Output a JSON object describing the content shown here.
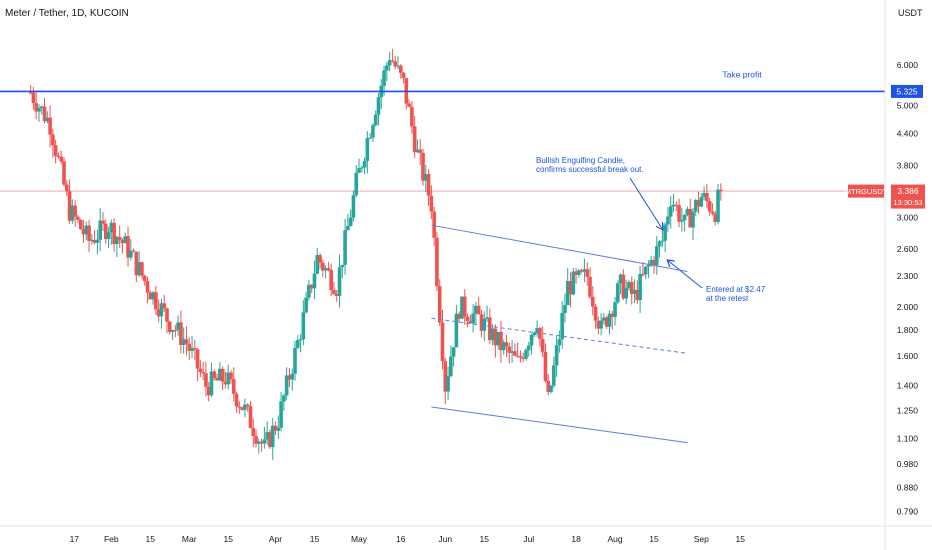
{
  "header": {
    "title": "Meter / Tether, 1D, KUCOIN",
    "unit": "USDT"
  },
  "colors": {
    "up": "#26a69a",
    "down": "#ef5350",
    "accent": "#1e53e5",
    "channel": "#5b7fe0",
    "label_text": "#1e53e5"
  },
  "chart_data": {
    "type": "candlestick",
    "symbol": "MTRGUSDT",
    "y_scale": "log",
    "ylim": [
      0.76,
      7.2
    ],
    "y_ticks": [
      "0.790",
      "0.880",
      "0.980",
      "1.100",
      "1.250",
      "1.400",
      "1.600",
      "1.800",
      "2.000",
      "2.300",
      "2.600",
      "3.000",
      "3.400",
      "3.800",
      "4.400",
      "5.000",
      "6.000"
    ],
    "x_ticks": [
      "17",
      "Feb",
      "15",
      "Mar",
      "15",
      "Apr",
      "15",
      "May",
      "16",
      "Jun",
      "15",
      "Jul",
      "18",
      "Aug",
      "15",
      "Sep",
      "15"
    ],
    "last_price": "3.386",
    "countdown": "13:30:53",
    "take_profit_level": "5.325",
    "annotations": {
      "take_profit": "Take profit",
      "engulfing_line1": "Bullish Engulfing Candle,",
      "engulfing_line2": "confirms successful break out.",
      "entry_line1": "Entered at $2.47",
      "entry_line2": "at the retest"
    },
    "key_points": [
      [
        "2022-01-03",
        5.3
      ],
      [
        "2022-01-10",
        4.6
      ],
      [
        "2022-01-17",
        3.1
      ],
      [
        "2022-01-24",
        2.7
      ],
      [
        "2022-01-31",
        2.9
      ],
      [
        "2022-02-07",
        2.6
      ],
      [
        "2022-02-14",
        2.2
      ],
      [
        "2022-02-21",
        1.9
      ],
      [
        "2022-02-28",
        1.7
      ],
      [
        "2022-03-07",
        1.4
      ],
      [
        "2022-03-14",
        1.45
      ],
      [
        "2022-03-21",
        1.25
      ],
      [
        "2022-03-28",
        1.05
      ],
      [
        "2022-04-02",
        1.2
      ],
      [
        "2022-04-09",
        1.7
      ],
      [
        "2022-04-16",
        2.5
      ],
      [
        "2022-04-23",
        2.2
      ],
      [
        "2022-04-30",
        3.5
      ],
      [
        "2022-05-07",
        5.0
      ],
      [
        "2022-05-12",
        6.3
      ],
      [
        "2022-05-17",
        5.5
      ],
      [
        "2022-05-22",
        4.0
      ],
      [
        "2022-05-27",
        3.2
      ],
      [
        "2022-06-01",
        1.4
      ],
      [
        "2022-06-06",
        2.0
      ],
      [
        "2022-06-13",
        1.9
      ],
      [
        "2022-06-20",
        1.7
      ],
      [
        "2022-06-27",
        1.55
      ],
      [
        "2022-07-04",
        1.9
      ],
      [
        "2022-07-08",
        1.3
      ],
      [
        "2022-07-15",
        2.2
      ],
      [
        "2022-07-22",
        2.3
      ],
      [
        "2022-07-27",
        1.8
      ],
      [
        "2022-08-03",
        2.2
      ],
      [
        "2022-08-08",
        2.1
      ],
      [
        "2022-08-13",
        2.4
      ],
      [
        "2022-08-18",
        2.7
      ],
      [
        "2022-08-21",
        3.3
      ],
      [
        "2022-08-26",
        2.9
      ],
      [
        "2022-09-01",
        3.3
      ],
      [
        "2022-09-06",
        3.1
      ],
      [
        "2022-09-08",
        3.386
      ]
    ]
  }
}
